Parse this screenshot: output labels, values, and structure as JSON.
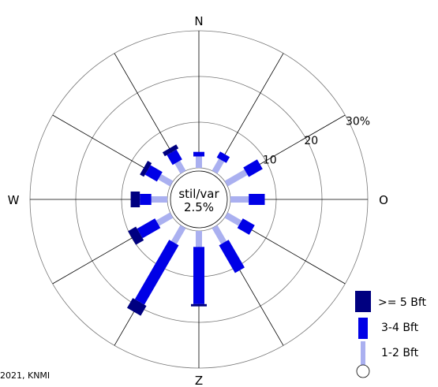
{
  "chart_data": {
    "type": "wind-rose",
    "compass": {
      "N": "N",
      "E": "O",
      "S": "Z",
      "W": "W"
    },
    "center_label": [
      "stil/var",
      "2.5%"
    ],
    "ring_values": [
      10,
      20,
      30
    ],
    "ring_labels": [
      "10",
      "20",
      "30%"
    ],
    "units": "percent",
    "sectors_deg": [
      0,
      30,
      60,
      90,
      120,
      150,
      180,
      210,
      240,
      270,
      300,
      330
    ],
    "series": [
      {
        "name": "1-2 Bft",
        "color": "#aab0f0",
        "values": [
          2.5,
          3.0,
          5.0,
          4.0,
          3.5,
          4.0,
          3.5,
          4.0,
          3.5,
          3.5,
          3.0,
          2.5
        ]
      },
      {
        "name": "3-4 Bft",
        "color": "#0000e6",
        "values": [
          1.0,
          1.5,
          3.5,
          3.5,
          3.0,
          7.0,
          12.5,
          15.0,
          4.5,
          2.5,
          3.0,
          2.5
        ]
      },
      {
        "name": ">= 5 Bft",
        "color": "#000080",
        "values": [
          0.0,
          0.0,
          0.0,
          0.0,
          0.0,
          0.0,
          0.5,
          2.5,
          2.0,
          2.0,
          1.0,
          1.0
        ]
      }
    ],
    "legend": [
      ">= 5 Bft",
      "3-4 Bft",
      "1-2 Bft"
    ],
    "credit": "2021, KNMI"
  }
}
